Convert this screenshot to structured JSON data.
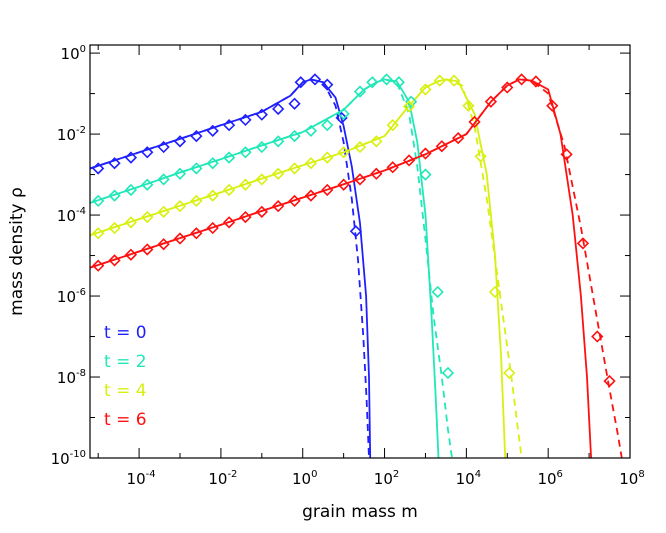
{
  "chart_data": {
    "type": "line",
    "xlabel": "grain mass m",
    "ylabel": "mass density ρ",
    "xscale": "log",
    "yscale": "log",
    "xlim_log10": [
      -5.2,
      8
    ],
    "ylim_log10": [
      -10,
      0.2
    ],
    "x_ticks_log10": [
      -4,
      -2,
      0,
      2,
      4,
      6,
      8
    ],
    "y_ticks_log10": [
      -10,
      -8,
      -6,
      -4,
      -2,
      0
    ],
    "x_tick_labels": [
      {
        "base": "10",
        "exp": "-4"
      },
      {
        "base": "10",
        "exp": "-2"
      },
      {
        "base": "10",
        "exp": "0"
      },
      {
        "base": "10",
        "exp": "2"
      },
      {
        "base": "10",
        "exp": "4"
      },
      {
        "base": "10",
        "exp": "6"
      },
      {
        "base": "10",
        "exp": "8"
      }
    ],
    "y_tick_labels": [
      {
        "base": "10",
        "exp": "-10"
      },
      {
        "base": "10",
        "exp": "-8"
      },
      {
        "base": "10",
        "exp": "-6"
      },
      {
        "base": "10",
        "exp": "-4"
      },
      {
        "base": "10",
        "exp": "-2"
      },
      {
        "base": "10",
        "exp": "0"
      }
    ],
    "grid": false,
    "legend_position": "bottom-left",
    "legend_entries": [
      "t = 0",
      "t = 2",
      "t = 4",
      "t = 6"
    ],
    "series": [
      {
        "name": "t = 0",
        "color": "#2020ff",
        "solid_log": [
          [
            -5.2,
            -2.85
          ],
          [
            -4,
            -2.45
          ],
          [
            -3,
            -2.12
          ],
          [
            -2,
            -1.78
          ],
          [
            -1,
            -1.45
          ],
          [
            -0.3,
            -1.05
          ],
          [
            0,
            -0.72
          ],
          [
            0.2,
            -0.65
          ],
          [
            0.5,
            -0.72
          ],
          [
            0.8,
            -1.1
          ],
          [
            1.0,
            -1.8
          ],
          [
            1.2,
            -2.8
          ],
          [
            1.4,
            -4.2
          ],
          [
            1.55,
            -6.0
          ],
          [
            1.62,
            -8.0
          ],
          [
            1.65,
            -10.0
          ]
        ],
        "dashed_log": [
          [
            -5.2,
            -2.85
          ],
          [
            -4,
            -2.45
          ],
          [
            -3,
            -2.12
          ],
          [
            -2,
            -1.78
          ],
          [
            -1,
            -1.45
          ],
          [
            -0.3,
            -1.05
          ],
          [
            0,
            -0.72
          ],
          [
            0.2,
            -0.65
          ],
          [
            0.5,
            -0.72
          ],
          [
            0.8,
            -1.3
          ],
          [
            1.0,
            -2.2
          ],
          [
            1.2,
            -3.6
          ],
          [
            1.35,
            -5.1
          ],
          [
            1.48,
            -7.0
          ],
          [
            1.56,
            -8.5
          ],
          [
            1.62,
            -10.0
          ]
        ],
        "markers_log": [
          [
            -5.0,
            -2.85
          ],
          [
            -4.6,
            -2.72
          ],
          [
            -4.2,
            -2.58
          ],
          [
            -3.8,
            -2.45
          ],
          [
            -3.4,
            -2.32
          ],
          [
            -3.0,
            -2.18
          ],
          [
            -2.6,
            -2.05
          ],
          [
            -2.2,
            -1.92
          ],
          [
            -1.8,
            -1.78
          ],
          [
            -1.4,
            -1.65
          ],
          [
            -1.0,
            -1.52
          ],
          [
            -0.6,
            -1.38
          ],
          [
            -0.2,
            -1.25
          ],
          [
            -0.05,
            -0.72
          ],
          [
            0.3,
            -0.65
          ],
          [
            0.6,
            -0.78
          ],
          [
            0.95,
            -1.6
          ],
          [
            1.3,
            -4.4
          ]
        ]
      },
      {
        "name": "t = 2",
        "color": "#20e8b8",
        "solid_log": [
          [
            -5.2,
            -3.7
          ],
          [
            -4,
            -3.3
          ],
          [
            -3,
            -2.95
          ],
          [
            -2,
            -2.62
          ],
          [
            -1,
            -2.28
          ],
          [
            0,
            -1.95
          ],
          [
            1,
            -1.4
          ],
          [
            1.5,
            -0.9
          ],
          [
            1.8,
            -0.72
          ],
          [
            2.0,
            -0.65
          ],
          [
            2.3,
            -0.7
          ],
          [
            2.6,
            -1.2
          ],
          [
            2.8,
            -2.2
          ],
          [
            3.0,
            -4.0
          ],
          [
            3.15,
            -6.5
          ],
          [
            3.25,
            -8.5
          ],
          [
            3.32,
            -10.0
          ]
        ],
        "dashed_log": [
          [
            -5.2,
            -3.7
          ],
          [
            -4,
            -3.3
          ],
          [
            -3,
            -2.95
          ],
          [
            -2,
            -2.62
          ],
          [
            -1,
            -2.28
          ],
          [
            0,
            -1.95
          ],
          [
            1,
            -1.4
          ],
          [
            1.5,
            -0.9
          ],
          [
            1.8,
            -0.72
          ],
          [
            2.0,
            -0.65
          ],
          [
            2.3,
            -0.72
          ],
          [
            2.6,
            -1.5
          ],
          [
            2.8,
            -2.8
          ],
          [
            3.0,
            -4.6
          ],
          [
            3.2,
            -6.5
          ],
          [
            3.4,
            -8.0
          ],
          [
            3.55,
            -9.3
          ],
          [
            3.65,
            -10.0
          ]
        ],
        "markers_log": [
          [
            -5.0,
            -3.65
          ],
          [
            -4.6,
            -3.52
          ],
          [
            -4.2,
            -3.38
          ],
          [
            -3.8,
            -3.25
          ],
          [
            -3.4,
            -3.12
          ],
          [
            -3.0,
            -2.98
          ],
          [
            -2.6,
            -2.85
          ],
          [
            -2.2,
            -2.72
          ],
          [
            -1.8,
            -2.58
          ],
          [
            -1.4,
            -2.45
          ],
          [
            -1.0,
            -2.32
          ],
          [
            -0.6,
            -2.18
          ],
          [
            -0.2,
            -2.05
          ],
          [
            0.2,
            -1.92
          ],
          [
            0.6,
            -1.78
          ],
          [
            1.0,
            -1.5
          ],
          [
            1.4,
            -0.95
          ],
          [
            1.7,
            -0.72
          ],
          [
            2.05,
            -0.65
          ],
          [
            2.35,
            -0.72
          ],
          [
            2.65,
            -1.2
          ],
          [
            3.0,
            -3.0
          ],
          [
            3.3,
            -5.9
          ],
          [
            3.55,
            -7.9
          ]
        ]
      },
      {
        "name": "t = 4",
        "color": "#d8f010",
        "solid_log": [
          [
            -5.2,
            -4.5
          ],
          [
            -4,
            -4.1
          ],
          [
            -3,
            -3.77
          ],
          [
            -2,
            -3.44
          ],
          [
            -1,
            -3.1
          ],
          [
            0,
            -2.77
          ],
          [
            1,
            -2.45
          ],
          [
            2,
            -2.05
          ],
          [
            2.6,
            -1.3
          ],
          [
            3.0,
            -0.85
          ],
          [
            3.3,
            -0.7
          ],
          [
            3.5,
            -0.65
          ],
          [
            3.8,
            -0.7
          ],
          [
            4.2,
            -1.5
          ],
          [
            4.5,
            -3.0
          ],
          [
            4.7,
            -5.0
          ],
          [
            4.85,
            -7.5
          ],
          [
            4.95,
            -10.0
          ]
        ],
        "dashed_log": [
          [
            -5.2,
            -4.5
          ],
          [
            -4,
            -4.1
          ],
          [
            -3,
            -3.77
          ],
          [
            -2,
            -3.44
          ],
          [
            -1,
            -3.1
          ],
          [
            0,
            -2.77
          ],
          [
            1,
            -2.45
          ],
          [
            2,
            -2.05
          ],
          [
            2.6,
            -1.3
          ],
          [
            3.0,
            -0.85
          ],
          [
            3.3,
            -0.7
          ],
          [
            3.5,
            -0.65
          ],
          [
            3.9,
            -0.8
          ],
          [
            4.2,
            -1.8
          ],
          [
            4.5,
            -3.6
          ],
          [
            4.8,
            -5.8
          ],
          [
            5.1,
            -8.0
          ],
          [
            5.25,
            -9.2
          ],
          [
            5.35,
            -10.0
          ]
        ],
        "markers_log": [
          [
            -5.0,
            -4.45
          ],
          [
            -4.6,
            -4.32
          ],
          [
            -4.2,
            -4.18
          ],
          [
            -3.8,
            -4.05
          ],
          [
            -3.4,
            -3.92
          ],
          [
            -3.0,
            -3.78
          ],
          [
            -2.6,
            -3.65
          ],
          [
            -2.2,
            -3.52
          ],
          [
            -1.8,
            -3.38
          ],
          [
            -1.4,
            -3.25
          ],
          [
            -1.0,
            -3.12
          ],
          [
            -0.6,
            -2.98
          ],
          [
            -0.2,
            -2.85
          ],
          [
            0.2,
            -2.72
          ],
          [
            0.6,
            -2.58
          ],
          [
            1.0,
            -2.45
          ],
          [
            1.4,
            -2.32
          ],
          [
            1.8,
            -2.18
          ],
          [
            2.2,
            -1.78
          ],
          [
            2.6,
            -1.32
          ],
          [
            3.0,
            -0.9
          ],
          [
            3.35,
            -0.68
          ],
          [
            3.7,
            -0.68
          ],
          [
            4.05,
            -1.3
          ],
          [
            4.35,
            -2.55
          ],
          [
            4.7,
            -5.9
          ],
          [
            5.05,
            -7.9
          ]
        ]
      },
      {
        "name": "t = 6",
        "color": "#ff1010",
        "solid_log": [
          [
            -5.2,
            -5.3
          ],
          [
            -4,
            -4.9
          ],
          [
            -3,
            -4.57
          ],
          [
            -2,
            -4.24
          ],
          [
            -1,
            -3.9
          ],
          [
            0,
            -3.57
          ],
          [
            1,
            -3.24
          ],
          [
            2,
            -2.9
          ],
          [
            3,
            -2.5
          ],
          [
            4,
            -2.0
          ],
          [
            4.6,
            -1.2
          ],
          [
            5.0,
            -0.8
          ],
          [
            5.3,
            -0.65
          ],
          [
            5.6,
            -0.68
          ],
          [
            6.0,
            -0.9
          ],
          [
            6.3,
            -2.0
          ],
          [
            6.6,
            -4.0
          ],
          [
            6.8,
            -6.0
          ],
          [
            6.95,
            -8.0
          ],
          [
            7.05,
            -10.0
          ]
        ],
        "dashed_log": [
          [
            -5.2,
            -5.3
          ],
          [
            -4,
            -4.9
          ],
          [
            -3,
            -4.57
          ],
          [
            -2,
            -4.24
          ],
          [
            -1,
            -3.9
          ],
          [
            0,
            -3.57
          ],
          [
            1,
            -3.24
          ],
          [
            2,
            -2.9
          ],
          [
            3,
            -2.5
          ],
          [
            4,
            -2.0
          ],
          [
            4.6,
            -1.2
          ],
          [
            5.0,
            -0.8
          ],
          [
            5.3,
            -0.65
          ],
          [
            5.6,
            -0.68
          ],
          [
            6.0,
            -1.0
          ],
          [
            6.4,
            -2.3
          ],
          [
            6.8,
            -4.3
          ],
          [
            7.2,
            -6.6
          ],
          [
            7.5,
            -8.3
          ],
          [
            7.7,
            -9.4
          ],
          [
            7.8,
            -10.0
          ]
        ],
        "markers_log": [
          [
            -5.0,
            -5.25
          ],
          [
            -4.6,
            -5.12
          ],
          [
            -4.2,
            -4.98
          ],
          [
            -3.8,
            -4.85
          ],
          [
            -3.4,
            -4.72
          ],
          [
            -3.0,
            -4.58
          ],
          [
            -2.6,
            -4.45
          ],
          [
            -2.2,
            -4.32
          ],
          [
            -1.8,
            -4.18
          ],
          [
            -1.4,
            -4.05
          ],
          [
            -1.0,
            -3.92
          ],
          [
            -0.6,
            -3.78
          ],
          [
            -0.2,
            -3.65
          ],
          [
            0.2,
            -3.52
          ],
          [
            0.6,
            -3.38
          ],
          [
            1.0,
            -3.25
          ],
          [
            1.4,
            -3.12
          ],
          [
            1.8,
            -2.98
          ],
          [
            2.2,
            -2.82
          ],
          [
            2.6,
            -2.65
          ],
          [
            3.0,
            -2.48
          ],
          [
            3.4,
            -2.3
          ],
          [
            3.8,
            -2.1
          ],
          [
            4.2,
            -1.7
          ],
          [
            4.6,
            -1.2
          ],
          [
            5.0,
            -0.85
          ],
          [
            5.35,
            -0.65
          ],
          [
            5.7,
            -0.7
          ],
          [
            6.1,
            -1.3
          ],
          [
            6.45,
            -2.5
          ],
          [
            6.85,
            -4.7
          ],
          [
            7.2,
            -7.0
          ],
          [
            7.5,
            -8.1
          ]
        ]
      }
    ]
  }
}
